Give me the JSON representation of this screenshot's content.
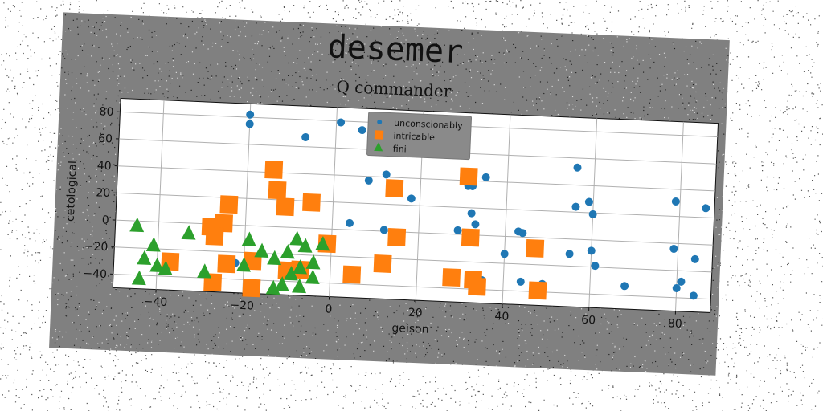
{
  "chart_data": {
    "type": "scatter",
    "title": "desemer",
    "subtitle": "Q commander",
    "xlabel": "geison",
    "ylabel": "cetological",
    "xlim": [
      -50,
      88
    ],
    "ylim": [
      -50,
      90
    ],
    "xticks": [
      -40,
      -20,
      0,
      20,
      40,
      60,
      80
    ],
    "yticks": [
      -40,
      -20,
      0,
      20,
      40,
      60,
      80
    ],
    "grid": true,
    "legend_placement": "top-center",
    "colors": {
      "unconscionably": "#1f77b4",
      "intricable": "#ff7f0e",
      "fini": "#2ca02c",
      "card": "#808080",
      "plot": "#ffffff"
    },
    "series": [
      {
        "name": "unconscionably",
        "marker": "circle",
        "points": [
          [
            -20,
            82
          ],
          [
            -20,
            75
          ],
          [
            -7,
            67
          ],
          [
            1,
            79
          ],
          [
            6,
            74
          ],
          [
            8,
            37
          ],
          [
            12,
            42
          ],
          [
            18,
            25
          ],
          [
            31,
            36
          ],
          [
            32,
            36
          ],
          [
            35,
            43
          ],
          [
            32,
            16
          ],
          [
            33,
            8
          ],
          [
            29,
            3
          ],
          [
            4,
            5
          ],
          [
            12,
            1
          ],
          [
            40,
            -13
          ],
          [
            35,
            -33
          ],
          [
            43,
            4
          ],
          [
            44,
            3
          ],
          [
            44,
            -33
          ],
          [
            49,
            -34
          ],
          [
            55,
            -11
          ],
          [
            56,
            53
          ],
          [
            56,
            24
          ],
          [
            59,
            28
          ],
          [
            60,
            19
          ],
          [
            60,
            -8
          ],
          [
            61,
            -19
          ],
          [
            68,
            -33
          ],
          [
            79,
            31
          ],
          [
            86,
            27
          ],
          [
            79,
            -4
          ],
          [
            84,
            -11
          ],
          [
            81,
            -28
          ],
          [
            80,
            -33
          ],
          [
            84,
            -38
          ],
          [
            -22,
            -28
          ]
        ]
      },
      {
        "name": "intricable",
        "marker": "square",
        "points": [
          [
            -14,
            42
          ],
          [
            -13,
            27
          ],
          [
            -11,
            15
          ],
          [
            -5,
            19
          ],
          [
            -24,
            15
          ],
          [
            -28,
            -2
          ],
          [
            -25,
            1
          ],
          [
            -27,
            -9
          ],
          [
            -37,
            -29
          ],
          [
            -24,
            -29
          ],
          [
            -27,
            -43
          ],
          [
            -18,
            -46
          ],
          [
            -18,
            -26
          ],
          [
            -10,
            -32
          ],
          [
            -7,
            -31
          ],
          [
            -1,
            -11
          ],
          [
            5,
            -33
          ],
          [
            12,
            -24
          ],
          [
            14,
            32
          ],
          [
            15,
            -4
          ],
          [
            28,
            -32
          ],
          [
            31,
            43
          ],
          [
            32,
            -2
          ],
          [
            33,
            -33
          ],
          [
            34,
            -38
          ],
          [
            47,
            -8
          ],
          [
            48,
            -39
          ]
        ]
      },
      {
        "name": "fini",
        "marker": "triangle",
        "points": [
          [
            -45,
            -4
          ],
          [
            -33,
            -8
          ],
          [
            -41,
            -18
          ],
          [
            -43,
            -28
          ],
          [
            -40,
            -33
          ],
          [
            -38,
            -35
          ],
          [
            -44,
            -43
          ],
          [
            -29,
            -36
          ],
          [
            -20,
            -30
          ],
          [
            -19,
            -11
          ],
          [
            -16,
            -19
          ],
          [
            -13,
            -24
          ],
          [
            -10,
            -19
          ],
          [
            -8,
            -9
          ],
          [
            -6,
            -14
          ],
          [
            -4,
            -26
          ],
          [
            -7,
            -30
          ],
          [
            -9,
            -35
          ],
          [
            -11,
            -43
          ],
          [
            -13,
            -46
          ],
          [
            -7,
            -44
          ],
          [
            -4,
            -37
          ],
          [
            -2,
            -12
          ]
        ]
      }
    ]
  }
}
